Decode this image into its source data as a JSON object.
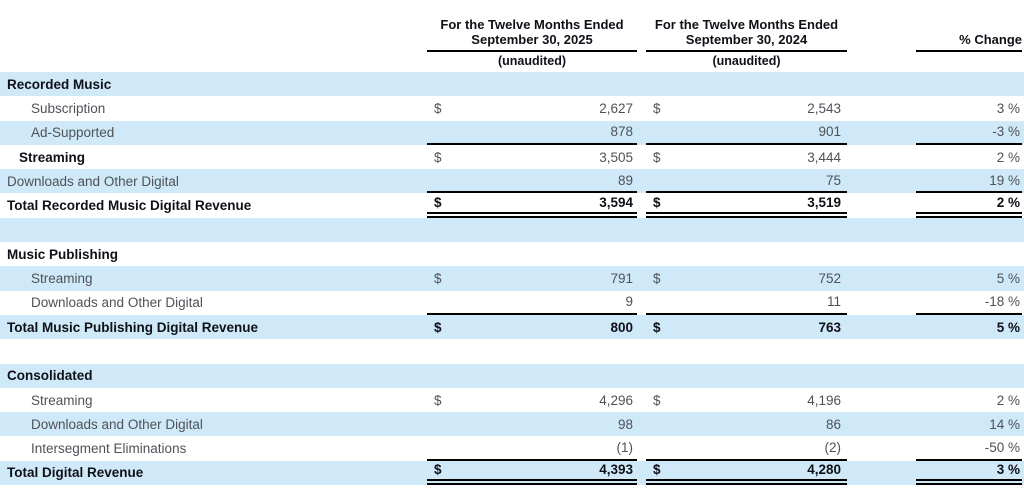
{
  "colors": {
    "stripe": "#cfe9f9",
    "gray_text": "#4e5257",
    "bold_text": "#101018",
    "rule": "#000000",
    "background": "#ffffff"
  },
  "header": {
    "col_2025": {
      "line1": "For the Twelve Months Ended",
      "line2": "September 30, 2025",
      "sub": "(unaudited)"
    },
    "col_2024": {
      "line1": "For the Twelve Months Ended",
      "line2": "September 30, 2024",
      "sub": "(unaudited)"
    },
    "col_change": "% Change"
  },
  "table": {
    "dollar_symbol": "$",
    "columns": [
      "label",
      "Twelve Months Ended September 30, 2025",
      "Twelve Months Ended September 30, 2024",
      "% Change"
    ],
    "rows": [
      {
        "name": "recorded-music",
        "label": "Recorded Music",
        "indent": 0,
        "label_bold": true,
        "nums_bold": false,
        "dollar": false,
        "v2025": "",
        "v2024": "",
        "change": "",
        "rule": "none",
        "spacer": false
      },
      {
        "name": "rm-subscription",
        "label": "Subscription",
        "indent": 2,
        "label_bold": false,
        "nums_bold": false,
        "dollar": true,
        "v2025": "2,627",
        "v2024": "2,543",
        "change": "3 %",
        "rule": "none",
        "spacer": false
      },
      {
        "name": "rm-ad-supported",
        "label": "Ad-Supported",
        "indent": 2,
        "label_bold": false,
        "nums_bold": false,
        "dollar": false,
        "v2025": "878",
        "v2024": "901",
        "change": "-3 %",
        "rule": "single",
        "spacer": false
      },
      {
        "name": "rm-streaming",
        "label": "Streaming",
        "indent": 1,
        "label_bold": true,
        "nums_bold": false,
        "dollar": true,
        "v2025": "3,505",
        "v2024": "3,444",
        "change": "2 %",
        "rule": "none",
        "spacer": false
      },
      {
        "name": "rm-downloads",
        "label": "Downloads and Other Digital",
        "indent": 0,
        "label_bold": false,
        "nums_bold": false,
        "dollar": false,
        "v2025": "89",
        "v2024": "75",
        "change": "19 %",
        "rule": "single",
        "spacer": false
      },
      {
        "name": "rm-total",
        "label": "Total Recorded Music Digital Revenue",
        "indent": 0,
        "label_bold": true,
        "nums_bold": true,
        "dollar": true,
        "v2025": "3,594",
        "v2024": "3,519",
        "change": "2 %",
        "rule": "double",
        "spacer": false
      },
      {
        "name": "spacer-1",
        "label": "",
        "indent": 0,
        "label_bold": false,
        "nums_bold": false,
        "dollar": false,
        "v2025": "",
        "v2024": "",
        "change": "",
        "rule": "none",
        "spacer": true
      },
      {
        "name": "music-publishing",
        "label": "Music Publishing",
        "indent": 0,
        "label_bold": true,
        "nums_bold": false,
        "dollar": false,
        "v2025": "",
        "v2024": "",
        "change": "",
        "rule": "none",
        "spacer": false
      },
      {
        "name": "mp-streaming",
        "label": "Streaming",
        "indent": 2,
        "label_bold": false,
        "nums_bold": false,
        "dollar": true,
        "v2025": "791",
        "v2024": "752",
        "change": "5 %",
        "rule": "none",
        "spacer": false
      },
      {
        "name": "mp-downloads",
        "label": "Downloads and Other Digital",
        "indent": 2,
        "label_bold": false,
        "nums_bold": false,
        "dollar": false,
        "v2025": "9",
        "v2024": "11",
        "change": "-18 %",
        "rule": "single",
        "spacer": false
      },
      {
        "name": "mp-total",
        "label": "Total Music Publishing Digital Revenue",
        "indent": 0,
        "label_bold": true,
        "nums_bold": true,
        "dollar": true,
        "v2025": "800",
        "v2024": "763",
        "change": "5 %",
        "rule": "none",
        "spacer": false
      },
      {
        "name": "spacer-2",
        "label": "",
        "indent": 0,
        "label_bold": false,
        "nums_bold": false,
        "dollar": false,
        "v2025": "",
        "v2024": "",
        "change": "",
        "rule": "none",
        "spacer": true
      },
      {
        "name": "consolidated",
        "label": "Consolidated",
        "indent": 0,
        "label_bold": true,
        "nums_bold": false,
        "dollar": false,
        "v2025": "",
        "v2024": "",
        "change": "",
        "rule": "none",
        "spacer": false
      },
      {
        "name": "cons-streaming",
        "label": "Streaming",
        "indent": 2,
        "label_bold": false,
        "nums_bold": false,
        "dollar": true,
        "v2025": "4,296",
        "v2024": "4,196",
        "change": "2 %",
        "rule": "none",
        "spacer": false
      },
      {
        "name": "cons-downloads",
        "label": "Downloads and Other Digital",
        "indent": 2,
        "label_bold": false,
        "nums_bold": false,
        "dollar": false,
        "v2025": "98",
        "v2024": "86",
        "change": "14 %",
        "rule": "none",
        "spacer": false
      },
      {
        "name": "cons-intersegment",
        "label": "Intersegment Eliminations",
        "indent": 2,
        "label_bold": false,
        "nums_bold": false,
        "dollar": false,
        "v2025": "(1)",
        "v2024": "(2)",
        "change": "-50 %",
        "rule": "single",
        "spacer": false
      },
      {
        "name": "total-digital-revenue",
        "label": "Total Digital Revenue",
        "indent": 0,
        "label_bold": true,
        "nums_bold": true,
        "dollar": true,
        "v2025": "4,393",
        "v2024": "4,280",
        "change": "3 %",
        "rule": "double",
        "spacer": false
      }
    ]
  }
}
